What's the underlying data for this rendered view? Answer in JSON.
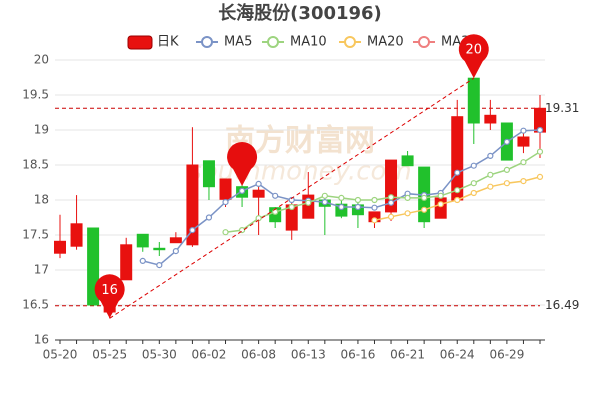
{
  "chart_data": {
    "type": "candlestick",
    "title": "长海股份(300196)",
    "watermark": [
      "南方财富网",
      "southmoney.com"
    ],
    "categories": [
      "05-20",
      null,
      null,
      "05-25",
      null,
      null,
      "05-30",
      null,
      null,
      "06-02",
      null,
      null,
      "06-08",
      null,
      null,
      "06-13",
      null,
      null,
      "06-16",
      null,
      null,
      "06-21",
      null,
      null,
      "06-24",
      null,
      null,
      "06-29",
      null,
      null
    ],
    "candles": {
      "name": "日K",
      "up_color": "#e8110f",
      "down_color": "#21c12c",
      "open": [
        17.24,
        17.34,
        17.6,
        16.4,
        16.86,
        17.51,
        17.31,
        17.39,
        17.36,
        18.56,
        18.01,
        18.19,
        18.04,
        17.89,
        17.57,
        17.74,
        18.0,
        17.94,
        17.93,
        17.69,
        17.83,
        18.63,
        18.47,
        17.74,
        18.0,
        19.74,
        19.1,
        19.1,
        18.77,
        18.97
      ],
      "close": [
        17.41,
        17.66,
        16.5,
        16.57,
        17.36,
        17.33,
        17.29,
        17.46,
        18.5,
        18.19,
        18.3,
        18.04,
        18.14,
        17.69,
        17.93,
        18.07,
        17.91,
        17.77,
        17.79,
        17.83,
        18.57,
        18.49,
        17.69,
        18.03,
        19.19,
        19.1,
        19.21,
        18.57,
        18.9,
        19.31
      ],
      "high": [
        17.79,
        18.07,
        17.6,
        16.57,
        17.46,
        17.51,
        17.4,
        17.54,
        19.04,
        18.56,
        18.3,
        18.4,
        18.2,
        17.9,
        18.0,
        18.4,
        18.06,
        18.07,
        18.0,
        17.83,
        18.57,
        18.7,
        18.47,
        18.1,
        19.43,
        19.74,
        19.43,
        19.1,
        19.0,
        19.5
      ],
      "low": [
        17.17,
        17.29,
        16.5,
        16.31,
        16.86,
        17.26,
        17.2,
        17.39,
        17.33,
        18.0,
        17.9,
        17.9,
        17.5,
        17.6,
        17.43,
        17.74,
        17.5,
        17.74,
        17.6,
        17.6,
        17.7,
        18.49,
        17.6,
        17.74,
        18.0,
        18.8,
        19.0,
        18.57,
        18.67,
        18.6
      ]
    },
    "series": [
      {
        "name": "MA5",
        "color": "#7b93c6",
        "values": [
          null,
          null,
          null,
          null,
          null,
          17.13,
          17.07,
          17.27,
          17.57,
          17.75,
          17.97,
          18.13,
          18.23,
          18.06,
          18.0,
          17.99,
          17.97,
          17.9,
          17.9,
          17.89,
          17.96,
          18.09,
          18.07,
          18.1,
          18.39,
          18.49,
          18.63,
          18.83,
          18.99,
          19.0
        ]
      },
      {
        "name": "MA10",
        "color": "#9dd47f",
        "values": [
          null,
          null,
          null,
          null,
          null,
          null,
          null,
          null,
          null,
          null,
          17.54,
          17.57,
          17.74,
          17.83,
          17.9,
          17.96,
          18.06,
          18.03,
          18.0,
          18.0,
          18.04,
          18.03,
          18.03,
          18.06,
          18.14,
          18.24,
          18.36,
          18.43,
          18.54,
          18.69
        ]
      },
      {
        "name": "MA20",
        "color": "#f8c75e",
        "values": [
          null,
          null,
          null,
          null,
          null,
          null,
          null,
          null,
          null,
          null,
          null,
          null,
          null,
          null,
          null,
          null,
          null,
          null,
          null,
          17.71,
          17.76,
          17.81,
          17.86,
          17.94,
          18.0,
          18.1,
          18.19,
          18.24,
          18.27,
          18.33
        ]
      },
      {
        "name": "MA30",
        "color": "#ef7f7f",
        "values": [
          null,
          null,
          null,
          null,
          null,
          null,
          null,
          null,
          null,
          null,
          null,
          null,
          null,
          null,
          null,
          null,
          null,
          null,
          null,
          null,
          null,
          null,
          null,
          null,
          null,
          null,
          null,
          null,
          null,
          null
        ]
      }
    ],
    "ylim": [
      16,
      20
    ],
    "yticks": [
      16,
      16.5,
      17,
      17.5,
      18,
      18.5,
      19,
      19.5,
      20
    ],
    "grid": true,
    "reference_lines": [
      19.31,
      16.49
    ],
    "max_label": "20",
    "min_label": "16"
  }
}
